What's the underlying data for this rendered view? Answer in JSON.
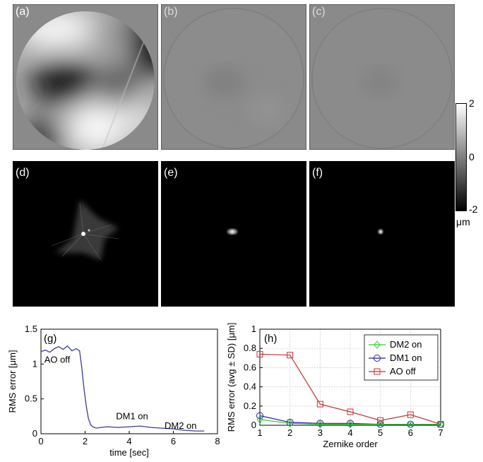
{
  "panels": {
    "a": "(a)",
    "b": "(b)",
    "c": "(c)",
    "d": "(d)",
    "e": "(e)",
    "f": "(f)"
  },
  "colorbar": {
    "max": "2",
    "mid": "0",
    "min": "-2",
    "unit": "μm"
  },
  "colors": {
    "panel_gray": "#8a8a8a",
    "dm2": "#33cc33",
    "dm1": "#1f1fa8",
    "ao_off": "#c83030",
    "trace": "#3a3a9a"
  },
  "chart_data": [
    {
      "type": "line",
      "label": "(g)",
      "xlabel": "time [sec]",
      "ylabel": "RMS error [μm]",
      "xlim": [
        0,
        8
      ],
      "ylim": [
        0,
        1.5
      ],
      "xticks": [
        "0",
        "2",
        "4",
        "6",
        "8"
      ],
      "yticks": [
        "0",
        "0.5",
        "1",
        "1.5"
      ],
      "grid": false,
      "annotations": [
        "AO off",
        "DM1 on",
        "DM2 on"
      ],
      "series": [
        {
          "x": [
            0,
            0.2,
            0.4,
            0.6,
            0.8,
            1.0,
            1.2,
            1.4,
            1.6,
            1.75,
            1.85,
            1.95,
            2.05,
            2.15,
            2.25,
            2.35,
            2.5,
            2.7,
            3.0,
            3.5,
            4.0,
            4.5,
            5.0,
            5.5,
            6.0,
            6.5,
            7.0,
            7.4
          ],
          "y": [
            1.18,
            1.2,
            1.17,
            1.22,
            1.25,
            1.21,
            1.26,
            1.19,
            1.22,
            1.19,
            0.95,
            0.65,
            0.4,
            0.22,
            0.13,
            0.1,
            0.08,
            0.09,
            0.1,
            0.09,
            0.1,
            0.11,
            0.09,
            0.08,
            0.07,
            0.05,
            0.04,
            0.04
          ]
        }
      ]
    },
    {
      "type": "line",
      "label": "(h)",
      "xlabel": "Zernike order",
      "ylabel": "RMS error (avg ± SD) [μm]",
      "xlim": [
        1,
        7
      ],
      "ylim": [
        0,
        1
      ],
      "xticks": [
        "1",
        "2",
        "3",
        "4",
        "5",
        "6",
        "7"
      ],
      "yticks": [
        "0",
        "0.2",
        "0.4",
        "0.6",
        "0.8",
        "1"
      ],
      "grid": true,
      "legend_position": "top-right",
      "categories": [
        1,
        2,
        3,
        4,
        5,
        6,
        7
      ],
      "series": [
        {
          "name": "DM2 on",
          "marker": "diamond",
          "values": [
            0.06,
            0.02,
            0.01,
            0.01,
            0.01,
            0.01,
            0.01
          ]
        },
        {
          "name": "DM1 on",
          "marker": "circle",
          "values": [
            0.1,
            0.03,
            0.02,
            0.02,
            0.01,
            0.01,
            0.01
          ]
        },
        {
          "name": "AO off",
          "marker": "square",
          "values": [
            0.74,
            0.73,
            0.22,
            0.14,
            0.05,
            0.11,
            0.01
          ]
        }
      ]
    }
  ]
}
